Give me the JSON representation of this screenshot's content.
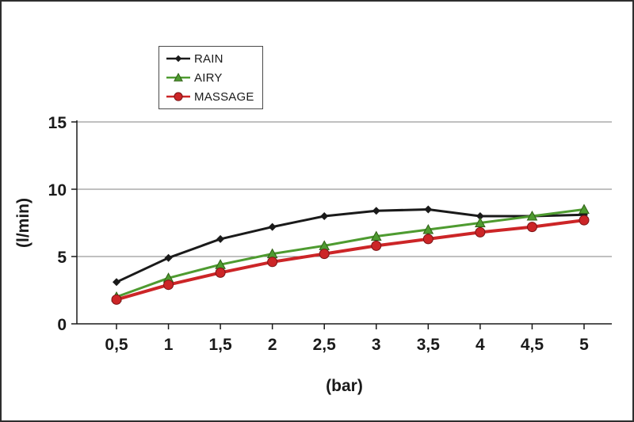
{
  "chart_data": {
    "type": "line",
    "title": "",
    "xlabel": "(bar)",
    "ylabel": "(l/min)",
    "x_tick_labels": [
      "0,5",
      "1",
      "1,5",
      "2",
      "2,5",
      "3",
      "3,5",
      "4",
      "4,5",
      "5"
    ],
    "x_values": [
      0.5,
      1,
      1.5,
      2,
      2.5,
      3,
      3.5,
      4,
      4.5,
      5
    ],
    "y_ticks": [
      0,
      5,
      10,
      15
    ],
    "ylim": [
      0,
      15
    ],
    "grid": true,
    "legend_position": "top-left-inside",
    "colors": {
      "grid": "#808080",
      "axis": "#1a1a1a",
      "background": "#ffffff",
      "frame_border": "#2e2e2e"
    },
    "series": [
      {
        "name": "RAIN",
        "color": "#1a1a1a",
        "marker": "diamond",
        "values": [
          3.1,
          4.9,
          6.3,
          7.2,
          8.0,
          8.4,
          8.5,
          8.0,
          8.0,
          8.1
        ]
      },
      {
        "name": "AIRY",
        "color": "#4e9b30",
        "marker": "triangle",
        "values": [
          2.0,
          3.4,
          4.4,
          5.2,
          5.8,
          6.5,
          7.0,
          7.5,
          8.0,
          8.5
        ]
      },
      {
        "name": "MASSAGE",
        "color": "#cc2527",
        "marker": "circle",
        "values": [
          1.8,
          2.9,
          3.8,
          4.6,
          5.2,
          5.8,
          6.3,
          6.8,
          7.2,
          7.7
        ]
      }
    ]
  }
}
